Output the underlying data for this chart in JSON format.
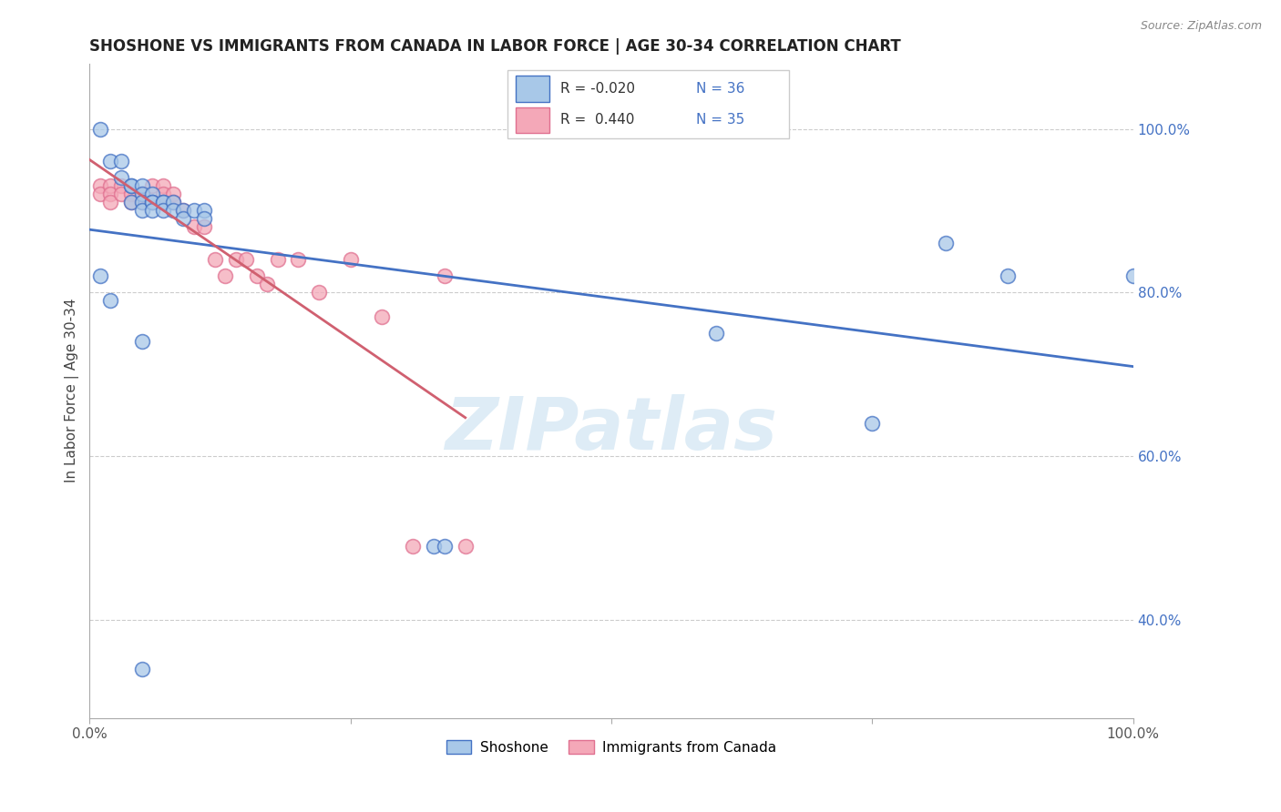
{
  "title": "SHOSHONE VS IMMIGRANTS FROM CANADA IN LABOR FORCE | AGE 30-34 CORRELATION CHART",
  "source_text": "Source: ZipAtlas.com",
  "ylabel": "In Labor Force | Age 30-34",
  "xlim": [
    0.0,
    1.0
  ],
  "ylim": [
    0.28,
    1.08
  ],
  "yticks": [
    0.4,
    0.6,
    0.8,
    1.0
  ],
  "ytick_labels": [
    "40.0%",
    "60.0%",
    "80.0%",
    "100.0%"
  ],
  "xticks": [
    0.0,
    0.25,
    0.5,
    0.75,
    1.0
  ],
  "xtick_labels": [
    "0.0%",
    "",
    "",
    "",
    "100.0%"
  ],
  "legend1_r": "-0.020",
  "legend1_n": "36",
  "legend2_r": "0.440",
  "legend2_n": "35",
  "shoshone_color": "#a8c8e8",
  "canada_color": "#f4a8b8",
  "shoshone_edge_color": "#4472c4",
  "canada_edge_color": "#e07090",
  "shoshone_line_color": "#4472c4",
  "canada_line_color": "#d06070",
  "watermark_color": "#c8e0f0",
  "shoshone_x": [
    0.01,
    0.02,
    0.03,
    0.03,
    0.04,
    0.04,
    0.04,
    0.05,
    0.05,
    0.05,
    0.05,
    0.06,
    0.06,
    0.06,
    0.06,
    0.07,
    0.07,
    0.07,
    0.08,
    0.08,
    0.09,
    0.09,
    0.1,
    0.11,
    0.11,
    0.33,
    0.34,
    0.6,
    0.75,
    0.82,
    0.88,
    1.0,
    0.01,
    0.02,
    0.05,
    0.05
  ],
  "shoshone_y": [
    1.0,
    0.96,
    0.96,
    0.94,
    0.93,
    0.93,
    0.91,
    0.93,
    0.92,
    0.91,
    0.9,
    0.92,
    0.91,
    0.91,
    0.9,
    0.91,
    0.91,
    0.9,
    0.91,
    0.9,
    0.9,
    0.89,
    0.9,
    0.9,
    0.89,
    0.49,
    0.49,
    0.75,
    0.64,
    0.86,
    0.82,
    0.82,
    0.82,
    0.79,
    0.74,
    0.34
  ],
  "canada_x": [
    0.01,
    0.01,
    0.02,
    0.02,
    0.02,
    0.03,
    0.03,
    0.04,
    0.04,
    0.05,
    0.05,
    0.06,
    0.06,
    0.07,
    0.07,
    0.07,
    0.08,
    0.08,
    0.09,
    0.1,
    0.11,
    0.12,
    0.13,
    0.14,
    0.15,
    0.16,
    0.17,
    0.18,
    0.2,
    0.22,
    0.25,
    0.28,
    0.31,
    0.34,
    0.36
  ],
  "canada_y": [
    0.93,
    0.92,
    0.93,
    0.92,
    0.91,
    0.93,
    0.92,
    0.92,
    0.91,
    0.92,
    0.91,
    0.93,
    0.91,
    0.93,
    0.92,
    0.91,
    0.92,
    0.91,
    0.9,
    0.88,
    0.88,
    0.84,
    0.82,
    0.84,
    0.84,
    0.82,
    0.81,
    0.84,
    0.84,
    0.8,
    0.84,
    0.77,
    0.49,
    0.82,
    0.49
  ]
}
